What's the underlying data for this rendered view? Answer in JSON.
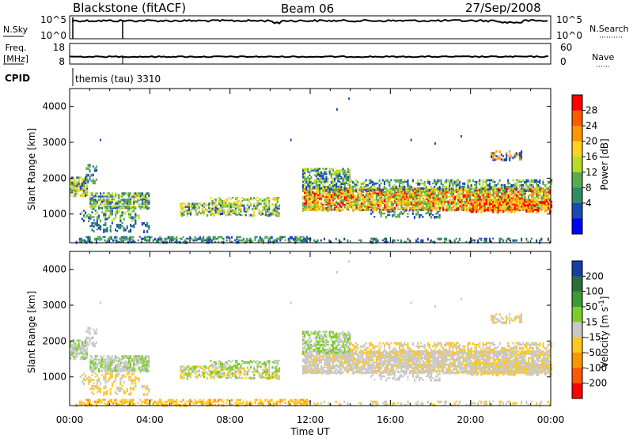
{
  "header": {
    "station": "Blackstone (fitACF)",
    "beam": "Beam 06",
    "date": "27/Sep/2008"
  },
  "panel_labels": {
    "nsky": "N.Sky",
    "nsearch": "N.Search",
    "freq_line1": "Freq.",
    "freq_line2": "[MHz]",
    "nave": "Nave",
    "cpid": "CPID",
    "cpid_value": "themis (tau) 3310"
  },
  "chart_data": [
    {
      "type": "line",
      "panel": "noise",
      "left_ticks": [
        "10^5",
        "10^0"
      ],
      "right_ticks": [
        "10^5",
        "10^0"
      ]
    },
    {
      "type": "line",
      "panel": "frequency",
      "left_ticks": [
        "18",
        "8"
      ],
      "right_ticks": [
        "60",
        "0"
      ]
    },
    {
      "type": "heatmap",
      "panel": "power",
      "ylabel": "Slant Range [km]",
      "yticks": [
        "4000",
        "3000",
        "2000",
        "1000"
      ],
      "ylim": [
        200,
        4500
      ],
      "xlim": [
        "00:00",
        "24:00"
      ],
      "colorbar": {
        "label": "Power [dB]",
        "ticks": [
          "28",
          "24",
          "20",
          "16",
          "12",
          "8",
          "4"
        ],
        "colors": [
          "#ff0000",
          "#ff5a00",
          "#ff9600",
          "#ffd21e",
          "#b4dc28",
          "#5aaa50",
          "#2d8c64",
          "#1a4ab4",
          "#0000ff"
        ]
      }
    },
    {
      "type": "heatmap",
      "panel": "velocity",
      "ylabel": "Slant Range [km]",
      "yticks": [
        "4000",
        "3000",
        "2000",
        "1000"
      ],
      "ylim": [
        200,
        4500
      ],
      "xlim": [
        "00:00",
        "24:00"
      ],
      "xticks": [
        "00:00",
        "04:00",
        "08:00",
        "12:00",
        "16:00",
        "20:00",
        "00:00"
      ],
      "xlabel": "Time UT",
      "colorbar": {
        "label": "Velocity [m s^-1]",
        "ticks": [
          "200",
          "100",
          "50",
          "15",
          "-15",
          "-50",
          "-100",
          "-200"
        ],
        "colors": [
          "#1a3caa",
          "#2a6e3c",
          "#3c9a32",
          "#7ccd2a",
          "#c8c8c8",
          "#ffc81e",
          "#ff9600",
          "#ff5a00",
          "#ff0000"
        ]
      }
    }
  ]
}
